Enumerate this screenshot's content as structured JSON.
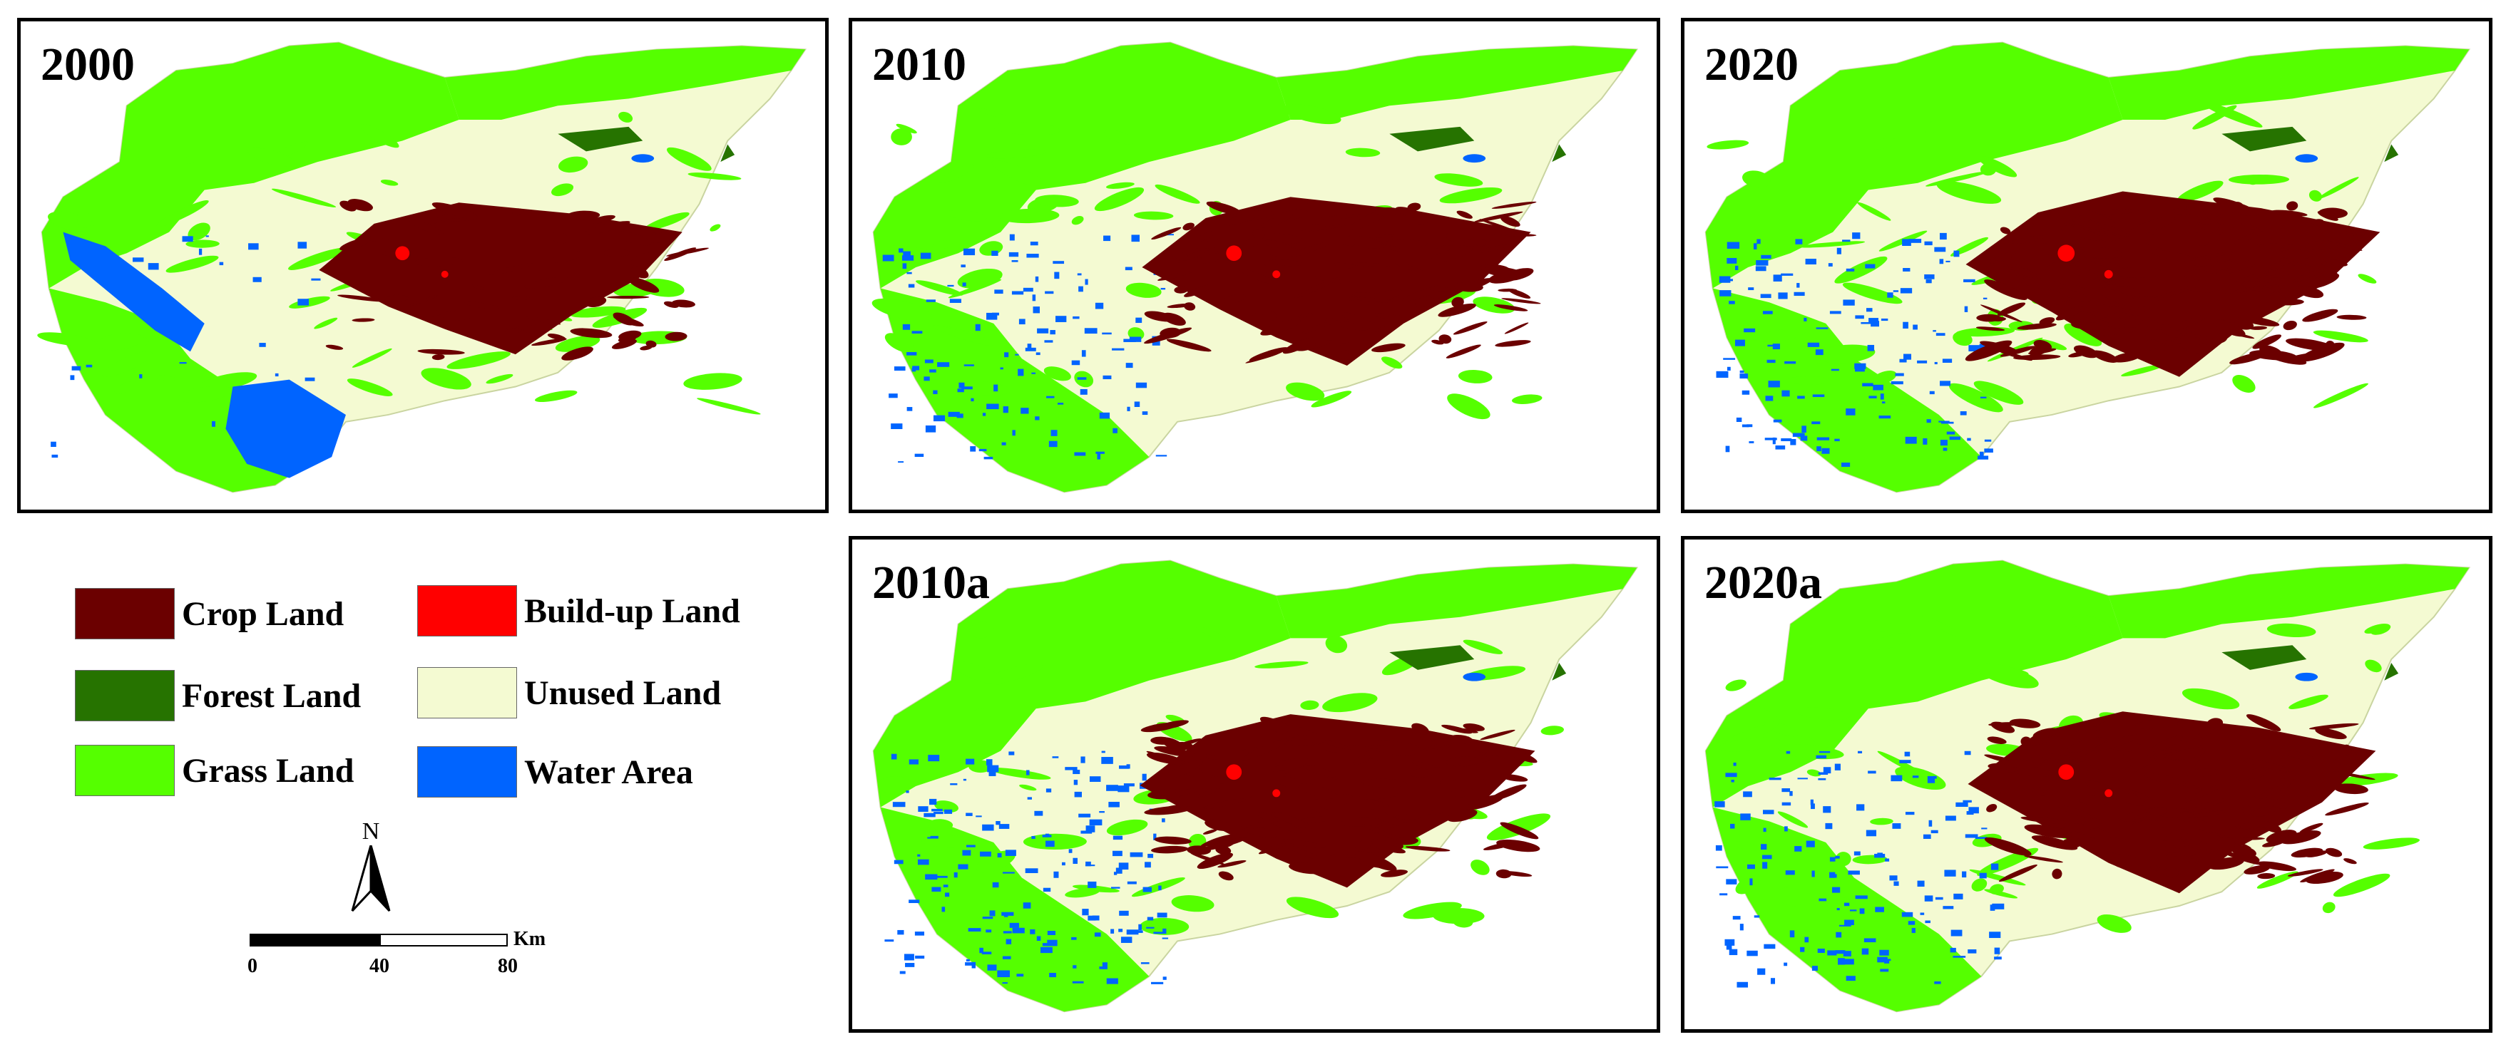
{
  "panels": [
    {
      "id": "p2000",
      "label": "2000"
    },
    {
      "id": "p2010",
      "label": "2010"
    },
    {
      "id": "p2020",
      "label": "2020"
    },
    {
      "id": "p2010a",
      "label": "2010a"
    },
    {
      "id": "p2020a",
      "label": "2020a"
    }
  ],
  "legend": {
    "items": [
      {
        "label": "Crop Land",
        "color": "#6b0000"
      },
      {
        "label": "Build-up Land",
        "color": "#ff0000"
      },
      {
        "label": "Forest Land",
        "color": "#267300"
      },
      {
        "label": "Unused Land",
        "color": "#f4fad2"
      },
      {
        "label": "Grass Land",
        "color": "#55ff00"
      },
      {
        "label": "Water Area",
        "color": "#0064ff"
      }
    ]
  },
  "north_arrow": {
    "label": "N"
  },
  "scale_bar": {
    "unit": "Km",
    "ticks": [
      "0",
      "40",
      "80"
    ]
  },
  "colors": {
    "crop": "#6b0000",
    "buildup": "#ff0000",
    "forest": "#267300",
    "unused": "#f4fad2",
    "grass": "#55ff00",
    "water": "#0064ff"
  }
}
